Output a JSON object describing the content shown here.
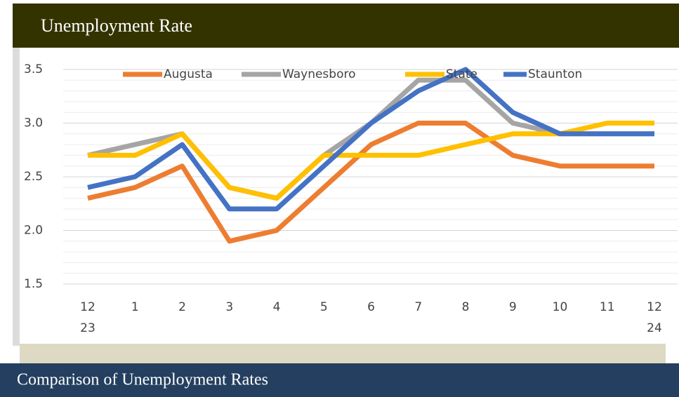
{
  "header": {
    "title": "Unemployment Rate"
  },
  "chart_data": {
    "type": "line",
    "categories": [
      "12\n23",
      "1",
      "2",
      "3",
      "4",
      "5",
      "6",
      "7",
      "8",
      "9",
      "10",
      "11",
      "12\n24"
    ],
    "series": [
      {
        "name": "Augusta",
        "color": "#ed7d31",
        "values": [
          2.3,
          2.4,
          2.6,
          1.9,
          2.0,
          2.4,
          2.8,
          3.0,
          3.0,
          2.7,
          2.6,
          2.6,
          2.6
        ]
      },
      {
        "name": "Waynesboro",
        "color": "#a5a5a5",
        "values": [
          2.7,
          2.8,
          2.9,
          2.4,
          2.3,
          2.7,
          3.0,
          3.4,
          3.4,
          3.0,
          2.9,
          2.9,
          2.9
        ]
      },
      {
        "name": "State",
        "color": "#ffc000",
        "values": [
          2.7,
          2.7,
          2.9,
          2.4,
          2.3,
          2.7,
          2.7,
          2.7,
          2.8,
          2.9,
          2.9,
          3.0,
          3.0
        ]
      },
      {
        "name": "Staunton",
        "color": "#4472c4",
        "values": [
          2.4,
          2.5,
          2.8,
          2.2,
          2.2,
          2.6,
          3.0,
          3.3,
          3.5,
          3.1,
          2.9,
          2.9,
          2.9
        ]
      }
    ],
    "ylim": [
      1.5,
      3.5
    ],
    "yticks": [
      {
        "value": 1.5,
        "label": "1.5"
      },
      {
        "value": 2,
        "label": "2.0"
      },
      {
        "value": 2.5,
        "label": "2.5"
      },
      {
        "value": 3,
        "label": "3.0"
      },
      {
        "value": 3.5,
        "label": "3.5"
      }
    ],
    "grid": true,
    "minor_grid": true,
    "legend": "top"
  },
  "footer": {
    "title": "Comparison of Unemployment Rates"
  }
}
